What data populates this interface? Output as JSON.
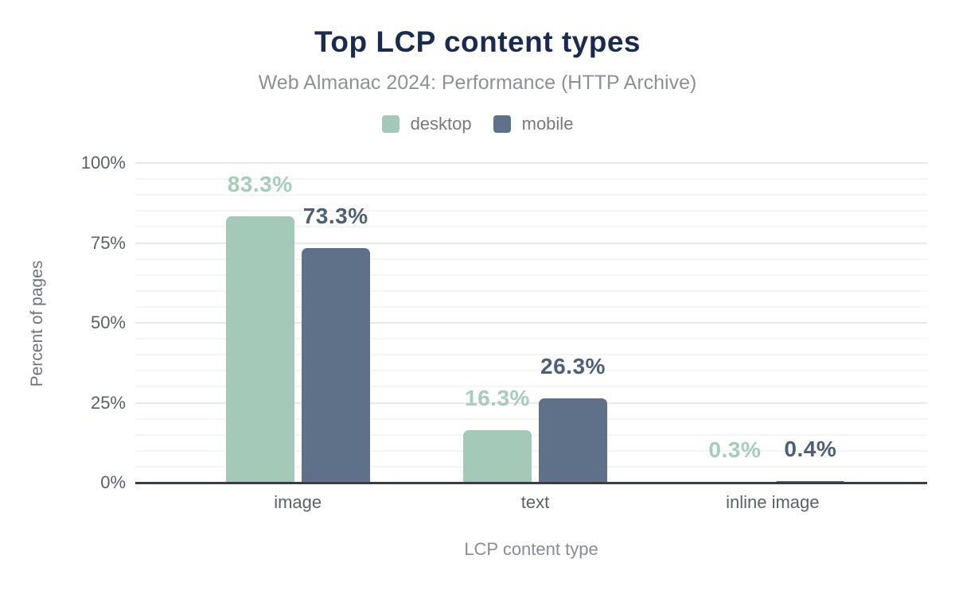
{
  "chart_data": {
    "type": "bar",
    "title": "Top LCP content types",
    "subtitle": "Web Almanac 2024: Performance (HTTP Archive)",
    "xlabel": "LCP content type",
    "ylabel": "Percent of pages",
    "categories": [
      "image",
      "text",
      "inline image"
    ],
    "series": [
      {
        "name": "desktop",
        "color": "#a4c9b8",
        "label_color": "#a6ccba",
        "values": [
          83.3,
          16.3,
          0.3
        ],
        "value_labels": [
          "83.3%",
          "16.3%",
          "0.3%"
        ]
      },
      {
        "name": "mobile",
        "color": "#5f7089",
        "label_color": "#4e6078",
        "values": [
          73.3,
          26.3,
          0.4
        ],
        "value_labels": [
          "73.3%",
          "26.3%",
          "0.4%"
        ]
      }
    ],
    "ylim": [
      0,
      100
    ],
    "yticks": [
      {
        "value": 0,
        "label": "0%"
      },
      {
        "value": 25,
        "label": "25%"
      },
      {
        "value": 50,
        "label": "50%"
      },
      {
        "value": 75,
        "label": "75%"
      },
      {
        "value": 100,
        "label": "100%"
      }
    ],
    "grid": {
      "minor_step": 5,
      "major_step": 25,
      "minor_color": "#f4f4f6",
      "major_color": "#e9e9ec"
    },
    "legend_position": "top"
  },
  "colors": {
    "title": "#1b2b4d",
    "subtitle": "#8c9199",
    "tick_labels": "#5c6066",
    "axis_titles": "#6f7378",
    "legend_text": "#77797f",
    "axis_line": "#393e46",
    "background": "#ffffff"
  }
}
